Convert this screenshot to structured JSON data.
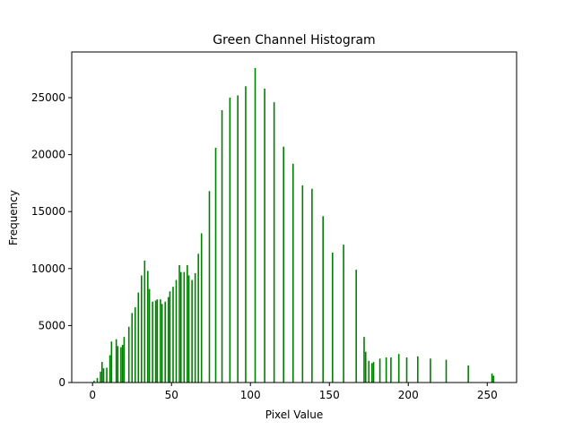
{
  "chart_data": {
    "type": "bar",
    "title": "Green Channel Histogram",
    "x_label": "Pixel Value",
    "y_label": "Frequency",
    "color": "#008000",
    "bar_width": 0.8,
    "x": [
      1,
      3,
      5,
      6,
      7,
      9,
      11,
      12,
      15,
      16,
      18,
      19,
      20,
      23,
      25,
      27,
      29,
      31,
      33,
      35,
      36,
      38,
      40,
      41,
      43,
      44,
      46,
      48,
      49,
      51,
      53,
      55,
      56,
      58,
      60,
      61,
      63,
      65,
      67,
      69,
      74,
      78,
      82,
      87,
      92,
      97,
      103,
      109,
      115,
      121,
      127,
      133,
      139,
      146,
      152,
      159,
      167,
      172,
      173,
      175,
      177,
      178,
      182,
      186,
      189,
      194,
      199,
      206,
      214,
      224,
      238,
      253,
      254
    ],
    "values": [
      150,
      400,
      950,
      1800,
      1250,
      1300,
      2400,
      3600,
      3800,
      3200,
      3100,
      3300,
      4000,
      4900,
      6100,
      6600,
      7900,
      9400,
      10700,
      9800,
      8200,
      7100,
      7200,
      7300,
      7300,
      6900,
      7100,
      7500,
      8000,
      8400,
      9000,
      10300,
      9700,
      9700,
      10300,
      9400,
      9000,
      9600,
      11300,
      13100,
      16800,
      20600,
      23900,
      25000,
      25200,
      26000,
      27600,
      25800,
      24600,
      20700,
      19200,
      17300,
      17000,
      14600,
      11400,
      12100,
      9900,
      4000,
      2700,
      1900,
      1700,
      1800,
      2100,
      2200,
      2200,
      2500,
      2200,
      2300,
      2100,
      2000,
      1500,
      800,
      600
    ],
    "xlim": [
      -13.19,
      268.59
    ],
    "ylim": [
      0,
      29010
    ],
    "xticks": [
      0,
      50,
      100,
      150,
      200,
      250
    ],
    "yticks": [
      0,
      5000,
      10000,
      15000,
      20000,
      25000
    ]
  }
}
